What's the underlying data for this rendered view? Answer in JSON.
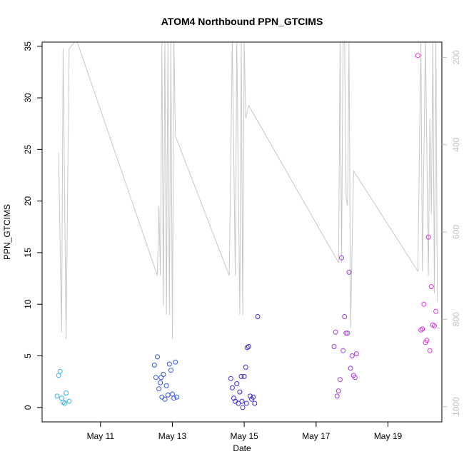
{
  "chart_data": {
    "type": "scatter",
    "title": "ATOM4 Northbound PPN_GTCIMS",
    "xlabel": "Date",
    "ylabel": "PPN_GTCIMS",
    "x_axis": {
      "range": [
        "2018-05-09T09:00",
        "2018-05-20T12:00"
      ],
      "ticks": [
        {
          "value": "2018-05-11",
          "label": "May 11"
        },
        {
          "value": "2018-05-13",
          "label": "May 13"
        },
        {
          "value": "2018-05-15",
          "label": "May 15"
        },
        {
          "value": "2018-05-17",
          "label": "May 17"
        },
        {
          "value": "2018-05-19",
          "label": "May 19"
        }
      ]
    },
    "y_axis": {
      "range": [
        -1.4,
        35.4
      ],
      "ticks": [
        0,
        5,
        10,
        15,
        20,
        25,
        30,
        35
      ]
    },
    "y2_axis": {
      "range": [
        1035,
        165
      ],
      "inverted": true,
      "ticks": [
        200,
        400,
        600,
        800,
        1000
      ],
      "color": "#c0c0c0"
    },
    "grid": false,
    "series": [
      {
        "color": "#33b5ef",
        "marker": "open-circle",
        "points": [
          [
            "2018-05-09T19:00",
            1.1
          ],
          [
            "2018-05-09T20:00",
            3.1
          ],
          [
            "2018-05-09T21:00",
            3.5
          ],
          [
            "2018-05-09T22:00",
            0.9
          ],
          [
            "2018-05-09T23:00",
            0.5
          ],
          [
            "2018-05-10T00:00",
            0.4
          ],
          [
            "2018-05-10T01:00",
            1.4
          ],
          [
            "2018-05-10T03:00",
            0.6
          ]
        ]
      },
      {
        "color": "#3355e6",
        "marker": "open-circle",
        "points": [
          [
            "2018-05-12T12:00",
            4.1
          ],
          [
            "2018-05-12T13:00",
            2.9
          ],
          [
            "2018-05-12T14:00",
            4.9
          ],
          [
            "2018-05-12T15:00",
            1.8
          ],
          [
            "2018-05-12T16:00",
            2.4
          ],
          [
            "2018-05-12T17:00",
            1.0
          ],
          [
            "2018-05-12T18:00",
            3.2
          ],
          [
            "2018-05-12T19:00",
            0.8
          ],
          [
            "2018-05-12T20:00",
            2.1
          ],
          [
            "2018-05-12T21:00",
            1.2
          ],
          [
            "2018-05-12T22:00",
            4.2
          ],
          [
            "2018-05-12T23:00",
            3.6
          ],
          [
            "2018-05-13T00:00",
            1.3
          ],
          [
            "2018-05-13T01:00",
            0.9
          ],
          [
            "2018-05-13T02:00",
            4.4
          ],
          [
            "2018-05-13T03:00",
            1.0
          ],
          [
            "2018-05-12T16:30",
            2.9
          ]
        ]
      },
      {
        "color": "#3a2bd8",
        "marker": "open-circle",
        "points": [
          [
            "2018-05-14T15:00",
            2.8
          ],
          [
            "2018-05-14T16:00",
            1.9
          ],
          [
            "2018-05-14T17:00",
            0.9
          ],
          [
            "2018-05-14T18:00",
            0.6
          ],
          [
            "2018-05-14T19:00",
            2.3
          ],
          [
            "2018-05-14T20:00",
            0.4
          ],
          [
            "2018-05-14T21:00",
            1.5
          ],
          [
            "2018-05-14T22:00",
            3.0
          ],
          [
            "2018-05-14T23:00",
            0.0
          ],
          [
            "2018-05-15T00:00",
            3.0
          ],
          [
            "2018-05-15T01:00",
            3.9
          ],
          [
            "2018-05-15T02:00",
            5.8
          ],
          [
            "2018-05-15T03:00",
            5.9
          ],
          [
            "2018-05-15T04:00",
            1.1
          ],
          [
            "2018-05-15T05:00",
            0.8
          ],
          [
            "2018-05-15T06:00",
            1.0
          ],
          [
            "2018-05-15T07:00",
            0.4
          ],
          [
            "2018-05-15T09:00",
            8.8
          ],
          [
            "2018-05-14T22:30",
            0.6
          ],
          [
            "2018-05-15T01:30",
            0.4
          ]
        ]
      },
      {
        "color": "#a13be0",
        "marker": "open-circle",
        "points": [
          [
            "2018-05-17T12:00",
            5.9
          ],
          [
            "2018-05-17T13:00",
            7.3
          ],
          [
            "2018-05-17T14:00",
            1.1
          ],
          [
            "2018-05-17T15:00",
            1.6
          ],
          [
            "2018-05-17T16:00",
            2.7
          ],
          [
            "2018-05-17T17:00",
            14.5
          ],
          [
            "2018-05-17T18:00",
            5.5
          ],
          [
            "2018-05-17T19:00",
            8.8
          ],
          [
            "2018-05-17T20:00",
            7.2
          ],
          [
            "2018-05-17T21:00",
            7.2
          ],
          [
            "2018-05-17T22:00",
            13.1
          ],
          [
            "2018-05-17T23:00",
            3.8
          ],
          [
            "2018-05-18T00:00",
            5.0
          ],
          [
            "2018-05-18T01:00",
            3.1
          ],
          [
            "2018-05-18T02:00",
            2.9
          ],
          [
            "2018-05-18T03:00",
            5.2
          ]
        ]
      },
      {
        "color": "#e02de0",
        "marker": "open-circle",
        "points": [
          [
            "2018-05-19T20:00",
            34.1
          ],
          [
            "2018-05-19T22:00",
            7.5
          ],
          [
            "2018-05-19T23:00",
            7.6
          ],
          [
            "2018-05-20T00:00",
            10.0
          ],
          [
            "2018-05-20T01:00",
            6.3
          ],
          [
            "2018-05-20T02:00",
            6.5
          ],
          [
            "2018-05-20T03:00",
            16.5
          ],
          [
            "2018-05-20T04:00",
            5.5
          ],
          [
            "2018-05-20T05:00",
            11.7
          ],
          [
            "2018-05-20T06:00",
            8.0
          ],
          [
            "2018-05-20T07:00",
            7.9
          ],
          [
            "2018-05-20T08:00",
            9.3
          ]
        ]
      }
    ],
    "secondary_line": {
      "color": "#c8c8c8",
      "axis": "y2",
      "points": [
        [
          "2018-05-09T20:00",
          420
        ],
        [
          "2018-05-09T22:00",
          830
        ],
        [
          "2018-05-09T23:00",
          180
        ],
        [
          "2018-05-10T01:00",
          845
        ],
        [
          "2018-05-10T03:00",
          180
        ],
        [
          "2018-05-10T08:00",
          160
        ],
        [
          "2018-05-12T14:00",
          700
        ],
        [
          "2018-05-12T15:00",
          540
        ],
        [
          "2018-05-12T16:00",
          700
        ],
        [
          "2018-05-12T17:00",
          160
        ],
        [
          "2018-05-12T18:00",
          770
        ],
        [
          "2018-05-12T19:00",
          160
        ],
        [
          "2018-05-12T20:00",
          790
        ],
        [
          "2018-05-12T21:00",
          160
        ],
        [
          "2018-05-12T22:00",
          790
        ],
        [
          "2018-05-12T23:00",
          160
        ],
        [
          "2018-05-13T00:00",
          845
        ],
        [
          "2018-05-13T01:00",
          160
        ],
        [
          "2018-05-13T02:00",
          380
        ],
        [
          "2018-05-14T14:00",
          700
        ],
        [
          "2018-05-14T16:00",
          160
        ],
        [
          "2018-05-14T18:00",
          700
        ],
        [
          "2018-05-14T19:00",
          160
        ],
        [
          "2018-05-14T21:00",
          790
        ],
        [
          "2018-05-14T22:00",
          160
        ],
        [
          "2018-05-14T23:00",
          790
        ],
        [
          "2018-05-15T00:00",
          160
        ],
        [
          "2018-05-15T01:00",
          340
        ],
        [
          "2018-05-15T03:00",
          310
        ],
        [
          "2018-05-17T15:00",
          670
        ],
        [
          "2018-05-17T16:00",
          160
        ],
        [
          "2018-05-17T17:00",
          670
        ],
        [
          "2018-05-17T18:00",
          160
        ],
        [
          "2018-05-17T19:00",
          160
        ],
        [
          "2018-05-17T20:00",
          520
        ],
        [
          "2018-05-17T21:00",
          540
        ],
        [
          "2018-05-17T22:00",
          160
        ],
        [
          "2018-05-17T23:00",
          820
        ],
        [
          "2018-05-18T01:00",
          460
        ],
        [
          "2018-05-19T20:00",
          690
        ],
        [
          "2018-05-19T22:00",
          160
        ],
        [
          "2018-05-19T23:00",
          690
        ],
        [
          "2018-05-20T01:00",
          160
        ],
        [
          "2018-05-20T03:00",
          700
        ],
        [
          "2018-05-20T04:00",
          340
        ],
        [
          "2018-05-20T05:00",
          560
        ],
        [
          "2018-05-20T06:00",
          160
        ],
        [
          "2018-05-20T07:00",
          740
        ],
        [
          "2018-05-20T08:00",
          160
        ],
        [
          "2018-05-20T09:00",
          760
        ]
      ]
    }
  }
}
